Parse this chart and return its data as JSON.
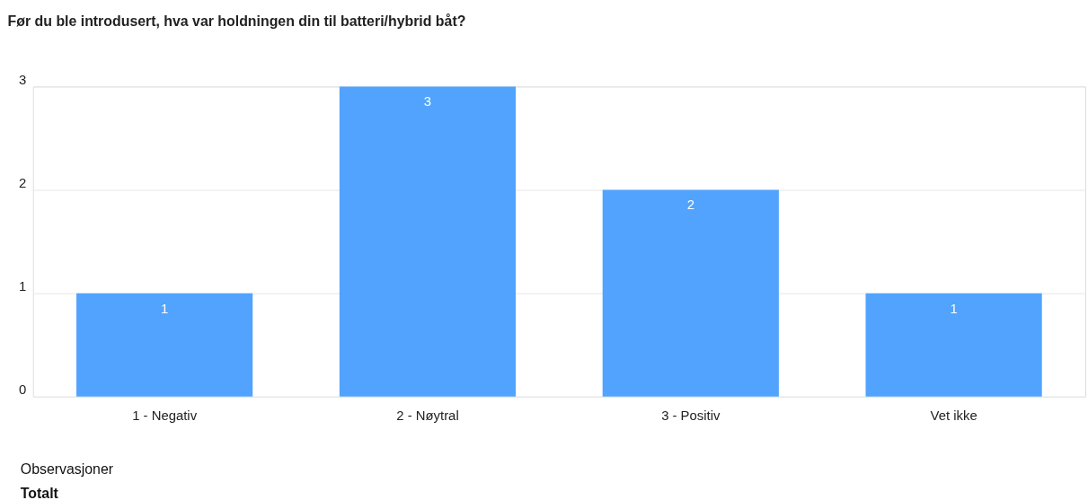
{
  "chart_data": {
    "type": "bar",
    "title": "Før du ble introdusert, hva var holdningen din til batteri/hybrid båt?",
    "categories": [
      "1 - Negativ",
      "2 - Nøytral",
      "3 - Positiv",
      "Vet ikke"
    ],
    "values": [
      1,
      3,
      2,
      1
    ],
    "color": "#51a3fe",
    "ylim": [
      0,
      3
    ],
    "yticks": [
      0,
      1,
      2,
      3
    ],
    "grid": "y",
    "data_labels": true,
    "annotations": [
      "Observasjoner",
      "Totalt"
    ]
  }
}
